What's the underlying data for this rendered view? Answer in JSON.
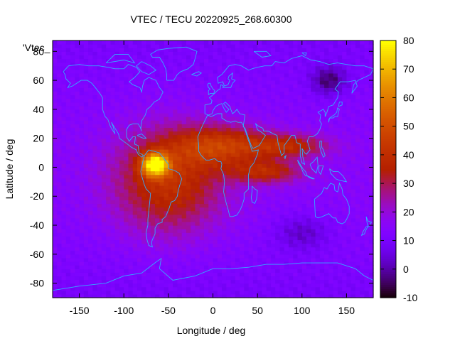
{
  "chart_data": {
    "type": "heatmap",
    "title": "VTEC / TECU 20220925_268.60300",
    "xlabel": "Longitude / deg",
    "ylabel": "Latitude / deg",
    "key_label": "'Vtec_",
    "xlim": [
      -180,
      180
    ],
    "ylim": [
      -90,
      87.5
    ],
    "x_ticks": [
      -150,
      -100,
      -50,
      0,
      50,
      100,
      150
    ],
    "y_ticks": [
      -80,
      -60,
      -40,
      -20,
      0,
      20,
      40,
      60,
      80
    ],
    "colorbar": {
      "range": [
        -10,
        80
      ],
      "ticks": [
        80,
        70,
        60,
        50,
        40,
        30,
        20,
        10,
        0,
        -10
      ],
      "palette": "gnuplot rgbformulae 7,5,15"
    },
    "grid_resolution": {
      "dlon_deg": 5,
      "dlat_deg": 2.5
    },
    "features": [
      {
        "name": "south-american-crest",
        "lon": -65,
        "lat": 2,
        "peak": 78,
        "lon_width": 15,
        "lat_width": 8
      },
      {
        "name": "south-american-body",
        "lon": -50,
        "lat": -10,
        "peak": 45,
        "lon_width": 60,
        "lat_width": 35
      },
      {
        "name": "equatorial-atlantic-band",
        "lon": 10,
        "lat": 15,
        "peak": 45,
        "lon_width": 55,
        "lat_width": 14
      },
      {
        "name": "indian-ocean-northern-arm",
        "lon": 85,
        "lat": 15,
        "peak": 40,
        "lon_width": 45,
        "lat_width": 8
      },
      {
        "name": "indian-ocean-southern-arm",
        "lon": 60,
        "lat": -3,
        "peak": 40,
        "lon_width": 40,
        "lat_width": 8
      },
      {
        "name": "north-east-asia-minimum",
        "lon": 130,
        "lat": 60,
        "peak": -5,
        "lon_width": 20,
        "lat_width": 10
      },
      {
        "name": "south-pacific-minimum",
        "lon": 100,
        "lat": -45,
        "peak": 2,
        "lon_width": 30,
        "lat_width": 12
      }
    ],
    "background_value": 14,
    "overlay": "coastlines"
  },
  "colors": {
    "coastline": "#33aaff",
    "border": "#000000",
    "background": "#ffffff"
  }
}
